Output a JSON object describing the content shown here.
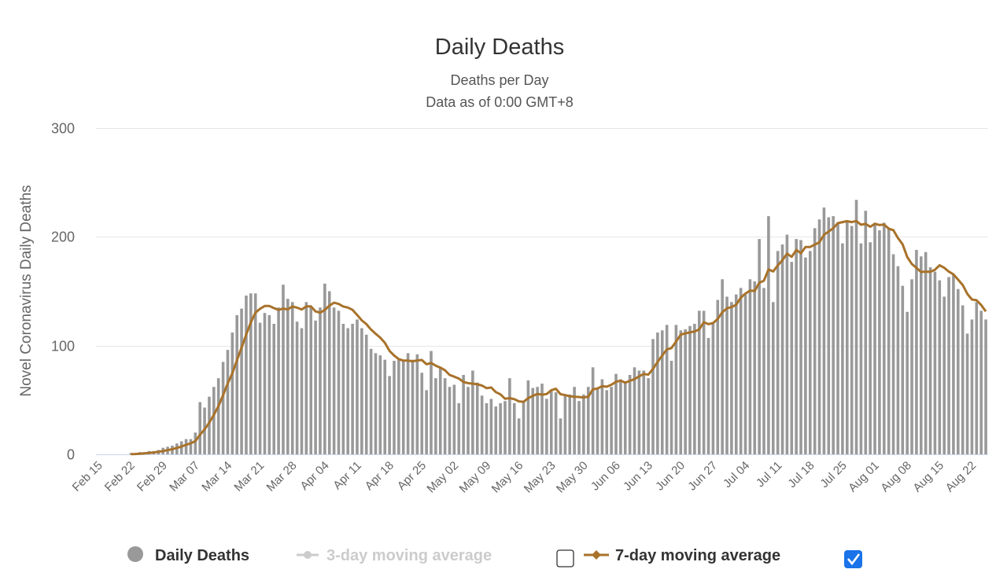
{
  "chart_data": {
    "type": "bar",
    "title": "Daily Deaths",
    "subtitle": [
      "Deaths per Day",
      "Data as of 0:00 GMT+8"
    ],
    "ylabel": "Novel Coronavirus Daily Deaths",
    "xlabel": "",
    "ylim": [
      0,
      300
    ],
    "yticks": [
      "0",
      "100",
      "200",
      "300"
    ],
    "grid": true,
    "start_date": "Feb 15",
    "xticks": [
      "Feb 15",
      "Feb 22",
      "Feb 29",
      "Mar 07",
      "Mar 14",
      "Mar 21",
      "Mar 28",
      "Apr 04",
      "Apr 11",
      "Apr 18",
      "Apr 25",
      "May 02",
      "May 09",
      "May 16",
      "May 23",
      "May 30",
      "Jun 06",
      "Jun 13",
      "Jun 20",
      "Jun 27",
      "Jul 04",
      "Jul 11",
      "Jul 18",
      "Jul 25",
      "Aug 01",
      "Aug 08",
      "Aug 15",
      "Aug 22"
    ],
    "xtick_step_days": 7,
    "series": [
      {
        "name": "Daily Deaths",
        "type": "bar",
        "color": "#999999",
        "values": [
          0,
          0,
          0,
          0,
          0,
          0,
          0,
          1,
          1,
          2,
          2,
          3,
          3,
          4,
          6,
          7,
          8,
          10,
          12,
          14,
          14,
          20,
          48,
          43,
          53,
          62,
          70,
          85,
          96,
          112,
          128,
          134,
          146,
          148,
          148,
          121,
          130,
          128,
          120,
          135,
          156,
          143,
          140,
          122,
          116,
          140,
          136,
          123,
          135,
          157,
          150,
          135,
          132,
          120,
          116,
          120,
          124,
          116,
          110,
          97,
          93,
          91,
          87,
          72,
          86,
          87,
          87,
          93,
          87,
          92,
          75,
          59,
          95,
          70,
          80,
          70,
          62,
          64,
          47,
          73,
          62,
          77,
          66,
          54,
          47,
          51,
          44,
          47,
          49,
          70,
          47,
          33,
          48,
          68,
          61,
          62,
          65,
          51,
          58,
          57,
          33,
          55,
          55,
          62,
          49,
          55,
          62,
          80,
          61,
          69,
          59,
          62,
          74,
          69,
          67,
          73,
          80,
          77,
          77,
          70,
          106,
          112,
          114,
          119,
          86,
          119,
          114,
          115,
          118,
          120,
          132,
          132,
          107,
          121,
          142,
          161,
          145,
          140,
          147,
          153,
          147,
          161,
          159,
          198,
          153,
          219,
          140,
          187,
          193,
          202,
          177,
          198,
          197,
          181,
          187,
          208,
          216,
          227,
          218,
          219,
          213,
          194,
          214,
          210,
          234,
          194,
          224,
          195,
          213,
          206,
          213,
          208,
          184,
          173,
          155,
          131,
          161,
          188,
          182,
          186,
          172,
          168,
          160,
          145,
          163,
          165,
          152,
          137,
          111,
          124,
          140,
          132,
          124
        ]
      },
      {
        "name": "3-day moving average",
        "type": "line",
        "color": "#cccccc",
        "visible": false
      },
      {
        "name": "7-day moving average",
        "type": "line",
        "color": "#a8722a",
        "visible": true,
        "window": 7
      }
    ],
    "legend": {
      "placement": "bottom",
      "items": [
        {
          "label": "Daily Deaths",
          "checkbox": null
        },
        {
          "label": "3-day moving average",
          "checkbox": false
        },
        {
          "label": "7-day moving average",
          "checkbox": true
        }
      ]
    }
  }
}
